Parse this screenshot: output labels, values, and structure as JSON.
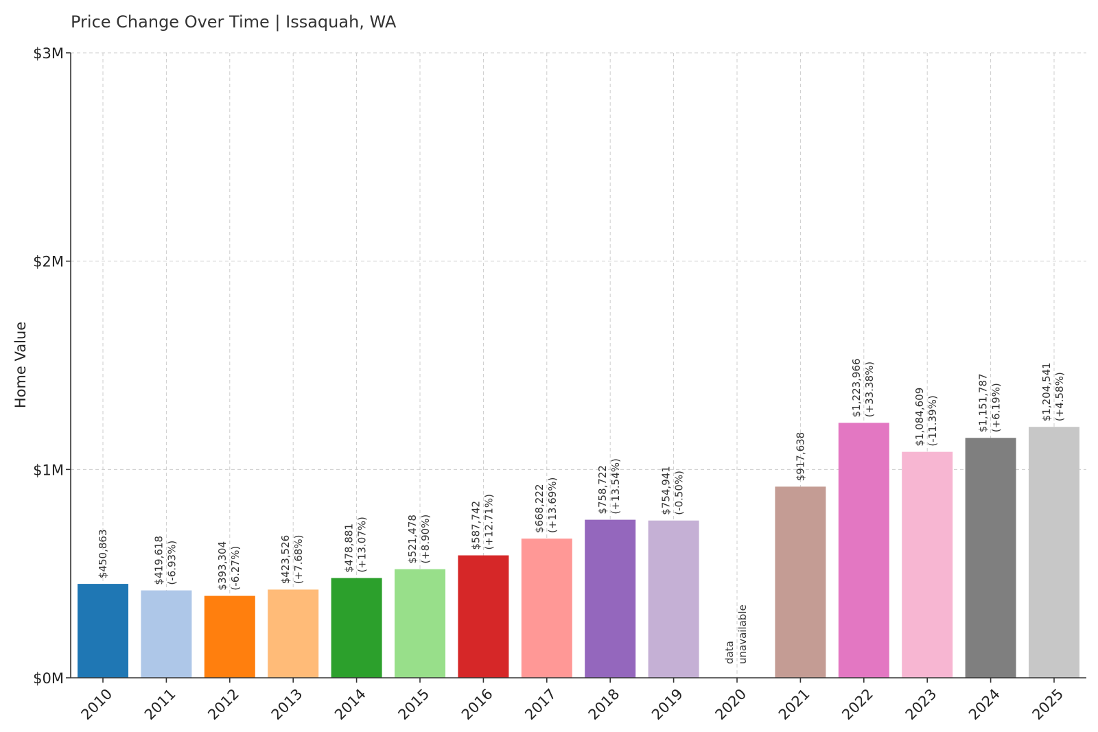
{
  "chart_data": {
    "type": "bar",
    "title": "Price Change Over Time | Issaquah, WA",
    "xlabel": "",
    "ylabel": "Home Value",
    "ylim": [
      0,
      3000000
    ],
    "yticks": [
      {
        "value": 0,
        "label": "$0M"
      },
      {
        "value": 1000000,
        "label": "$1M"
      },
      {
        "value": 2000000,
        "label": "$2M"
      },
      {
        "value": 3000000,
        "label": "$3M"
      }
    ],
    "grid": true,
    "categories": [
      "2010",
      "2011",
      "2012",
      "2013",
      "2014",
      "2015",
      "2016",
      "2017",
      "2018",
      "2019",
      "2020",
      "2021",
      "2022",
      "2023",
      "2024",
      "2025"
    ],
    "values": [
      450863,
      419618,
      393304,
      423526,
      478881,
      521478,
      587742,
      668222,
      758722,
      754941,
      null,
      917638,
      1223966,
      1084609,
      1151787,
      1204541
    ],
    "value_labels": [
      "$450,863",
      "$419,618",
      "$393,304",
      "$423,526",
      "$478,881",
      "$521,478",
      "$587,742",
      "$668,222",
      "$758,722",
      "$754,941",
      "data",
      "$917,638",
      "$1,223,966",
      "$1,084,609",
      "$1,151,787",
      "$1,204,541"
    ],
    "change_labels": [
      "",
      "(-6.93%)",
      "(-6.27%)",
      "(+7.68%)",
      "(+13.07%)",
      "(+8.90%)",
      "(+12.71%)",
      "(+13.69%)",
      "(+13.54%)",
      "(-0.50%)",
      "unavailable",
      "",
      "(+33.38%)",
      "(-11.39%)",
      "(+6.19%)",
      "(+4.58%)"
    ],
    "colors": [
      "#1f77b4",
      "#aec7e8",
      "#ff7f0e",
      "#ffbb78",
      "#2ca02c",
      "#98df8a",
      "#d62728",
      "#ff9896",
      "#9467bd",
      "#c5b0d5",
      "#ffffff",
      "#c49c94",
      "#e377c2",
      "#f7b6d2",
      "#7f7f7f",
      "#c7c7c7"
    ]
  }
}
